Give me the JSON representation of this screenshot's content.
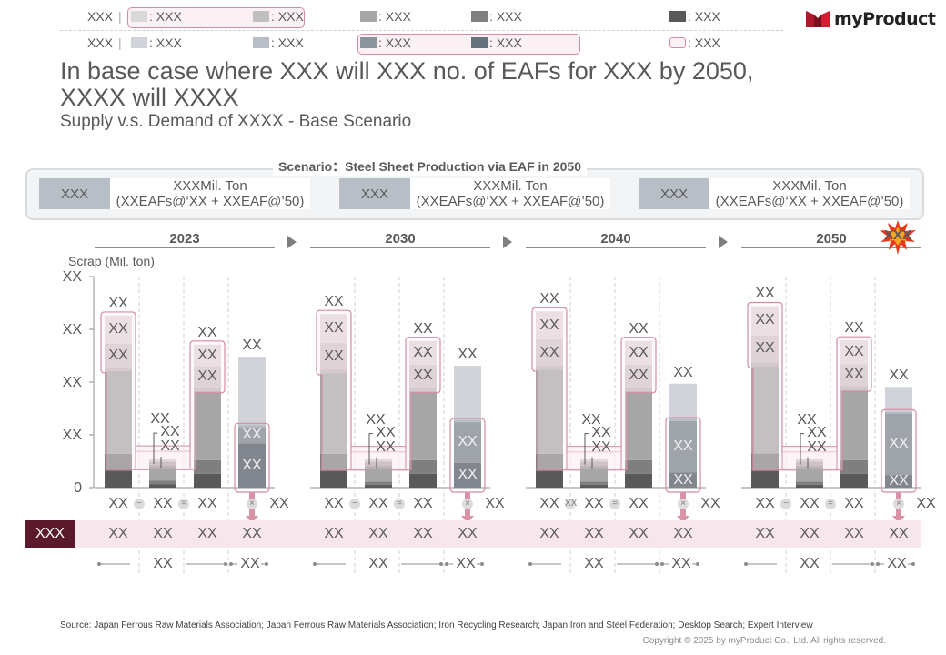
{
  "legend": {
    "row1_label": "XXX",
    "row2_label": "XXX",
    "row1": [
      {
        "color": "#d9d9d9",
        "label": ": XXX"
      },
      {
        "color": "#bfbfbf",
        "label": ": XXX"
      },
      {
        "color": "#a6a6a6",
        "label": ": XXX"
      },
      {
        "color": "#7f7f7f",
        "label": ": XXX"
      },
      {
        "color": "#595959",
        "label": ": XXX"
      }
    ],
    "row2": [
      {
        "color": "#d0d4d8",
        "label": ": XXX"
      },
      {
        "color": "#b8bec5",
        "label": ": XXX"
      },
      {
        "color": "#8b949c",
        "label": ": XXX"
      },
      {
        "color": "#66737c",
        "label": ": XXX"
      },
      {
        "color": "#fbf0f3",
        "label": ": XXX"
      }
    ]
  },
  "brand": {
    "name": "myProduct",
    "color": "#b0182c"
  },
  "title": "In base case where XXX will XXX no. of EAFs for XXX by 2050, XXXX will XXXX",
  "subtitle": "Supply v.s. Demand of XXXX - Base Scenario",
  "scenario": {
    "title": "Scenario：Steel Sheet Production via EAF in 2050",
    "cards": [
      {
        "key": "XXX",
        "line1": "XXXMil. Ton",
        "line2": "(XXEAFs@‘XX + XXEAF@’50)"
      },
      {
        "key": "XXX",
        "line1": "XXXMil. Ton",
        "line2": "(XXEAFs@‘XX + XXEAF@’50)"
      },
      {
        "key": "XXX",
        "line1": "XXXMil. Ton",
        "line2": "(XXEAFs@‘XX + XXEAF@’50)"
      }
    ]
  },
  "burst_label": "XXX",
  "band_header": "XXX",
  "source": "Source: Japan Ferrous Raw Materials Association; Japan Ferrous Raw Materials Association; Iron Recycling Research; Japan Iron and Steel Federation; Desktop Search; Expert Interview",
  "copyright": "Copyright © 2025 by myProduct Co., Ltd.  All rights reserved.",
  "chart_data": {
    "type": "bar",
    "ylabel": "Scrap (Mil. ton)",
    "ylim": [
      0,
      4
    ],
    "yticks": [
      {
        "value": 0,
        "label": "0"
      },
      {
        "value": 1,
        "label": "XX"
      },
      {
        "value": 2,
        "label": "XX"
      },
      {
        "value": 3,
        "label": "XX"
      },
      {
        "value": 4,
        "label": "XX"
      }
    ],
    "segment_colors": [
      "#595959",
      "#7f7f7f",
      "#a6a6a6",
      "#bfb4b9",
      "#d0c3c8",
      "#e2d6da"
    ],
    "supply_colors": [
      "#82868e",
      "#9fa3aa",
      "#b8bec5",
      "#d0d4d8"
    ],
    "groups": [
      {
        "year": "2023",
        "bar1": {
          "segments": [
            0.31,
            0.33,
            1.57,
            0.07,
            0.45,
            0.53
          ],
          "total_label": "XX",
          "seg_labels": [
            "XX",
            "XX"
          ]
        },
        "bar2": {
          "segments": [
            0.06,
            0.07,
            0.24,
            0.05,
            0.07,
            0.06
          ],
          "total_label": "XX",
          "seg_labels": [
            "XX",
            "XX"
          ]
        },
        "bar3": {
          "segments": [
            0.26,
            0.26,
            1.31,
            0.07,
            0.4,
            0.41
          ],
          "total_label": "XX",
          "seg_labels": [
            "XX",
            "XX"
          ]
        },
        "bar4": {
          "segments": [
            0.84,
            0.31,
            0.05,
            1.28
          ],
          "total_label": "XX",
          "seg_labels": [
            "XX",
            "XX"
          ]
        },
        "row1": [
          "XX",
          "XX",
          "XX",
          "XX"
        ],
        "row2": [
          "XX",
          "XX",
          "XX",
          "XX"
        ],
        "row3": [
          "XX",
          "XX"
        ],
        "op1": "−"
      },
      {
        "year": "2030",
        "bar1": {
          "segments": [
            0.31,
            0.33,
            1.53,
            0.07,
            0.5,
            0.55
          ],
          "total_label": "XX",
          "seg_labels": [
            "XX",
            "XX"
          ]
        },
        "bar2": {
          "segments": [
            0.05,
            0.06,
            0.26,
            0.05,
            0.07,
            0.05
          ],
          "total_label": "XX",
          "seg_labels": [
            "XX",
            "XX"
          ]
        },
        "bar3": {
          "segments": [
            0.26,
            0.26,
            1.31,
            0.07,
            0.43,
            0.45
          ],
          "total_label": "XX",
          "seg_labels": [
            "XX",
            "XX"
          ]
        },
        "bar4": {
          "segments": [
            0.47,
            0.77,
            0.05,
            1.02
          ],
          "total_label": "XX",
          "seg_labels": [
            "XX",
            "XX"
          ]
        },
        "row1": [
          "XX",
          "XX",
          "XX",
          "XX"
        ],
        "row2": [
          "XX",
          "XX",
          "XX",
          "XX"
        ],
        "row3": [
          "XX",
          "XX"
        ],
        "op1": "−"
      },
      {
        "year": "2040",
        "bar1": {
          "segments": [
            0.31,
            0.33,
            1.6,
            0.07,
            0.5,
            0.53
          ],
          "total_label": "XX",
          "seg_labels": [
            "XX",
            "XX"
          ]
        },
        "bar2": {
          "segments": [
            0.05,
            0.06,
            0.26,
            0.05,
            0.07,
            0.05
          ],
          "total_label": "XX",
          "seg_labels": [
            "XX",
            "XX"
          ]
        },
        "bar3": {
          "segments": [
            0.26,
            0.26,
            1.31,
            0.07,
            0.43,
            0.45
          ],
          "total_label": "XX",
          "seg_labels": [
            "XX",
            "XX"
          ]
        },
        "bar4": {
          "segments": [
            0.29,
            0.97,
            0.05,
            0.66
          ],
          "total_label": "XX",
          "seg_labels": [
            "XX",
            "XX"
          ]
        },
        "row1": [
          "XX",
          "XX",
          "XX",
          "XX"
        ],
        "row2": [
          "XX",
          "XX",
          "XX",
          "XX"
        ],
        "row3": [
          "XX",
          "XX"
        ],
        "op1": "XX"
      },
      {
        "year": "2050",
        "bar1": {
          "segments": [
            0.31,
            0.34,
            1.65,
            0.07,
            0.52,
            0.55
          ],
          "total_label": "XX",
          "seg_labels": [
            "XX",
            "XX"
          ]
        },
        "bar2": {
          "segments": [
            0.05,
            0.06,
            0.26,
            0.05,
            0.07,
            0.05
          ],
          "total_label": "XX",
          "seg_labels": [
            "XX",
            "XX"
          ]
        },
        "bar3": {
          "segments": [
            0.26,
            0.26,
            1.34,
            0.07,
            0.41,
            0.45
          ],
          "total_label": "XX",
          "seg_labels": [
            "XX",
            "XX"
          ]
        },
        "bar4": {
          "segments": [
            0.24,
            1.17,
            0.03,
            0.47
          ],
          "total_label": "XX",
          "seg_labels": [
            "XX",
            "XX"
          ]
        },
        "row1": [
          "XX",
          "XX",
          "XX",
          "XX"
        ],
        "row2": [
          "XX",
          "XX",
          "XX",
          "XX"
        ],
        "row3": [
          "XX",
          "XX"
        ],
        "op1": "−"
      }
    ]
  }
}
